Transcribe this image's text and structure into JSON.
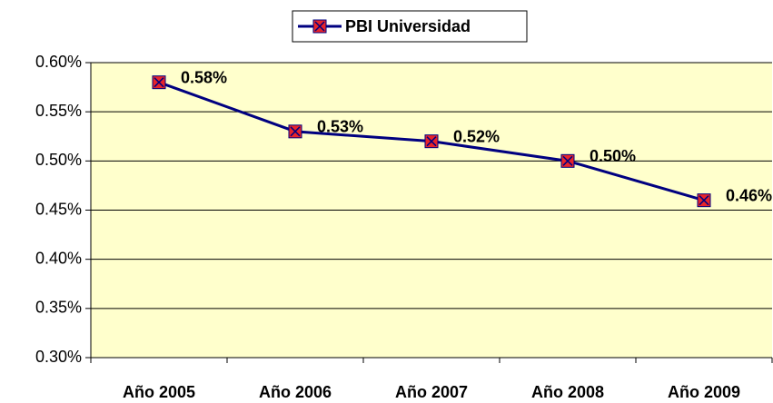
{
  "chart_data": {
    "type": "line",
    "categories": [
      "Año 2005",
      "Año 2006",
      "Año 2007",
      "Año 2008",
      "Año 2009"
    ],
    "series": [
      {
        "name": "PBI Universidad",
        "color": "#000080",
        "marker_color": "#e8242a",
        "values": [
          0.58,
          0.53,
          0.52,
          0.5,
          0.46
        ],
        "value_labels": [
          "0.58%",
          "0.53%",
          "0.52%",
          "0.50%",
          "0.46%"
        ]
      }
    ],
    "ylim": [
      0.3,
      0.6
    ],
    "yticks": [
      {
        "value": 0.3,
        "label": "0.30%"
      },
      {
        "value": 0.35,
        "label": "0.35%"
      },
      {
        "value": 0.4,
        "label": "0.40%"
      },
      {
        "value": 0.45,
        "label": "0.45%"
      },
      {
        "value": 0.5,
        "label": "0.50%"
      },
      {
        "value": 0.55,
        "label": "0.55%"
      },
      {
        "value": 0.6,
        "label": "0.60%"
      }
    ],
    "grid": true,
    "legend": "top",
    "background": "#ffffcc"
  }
}
